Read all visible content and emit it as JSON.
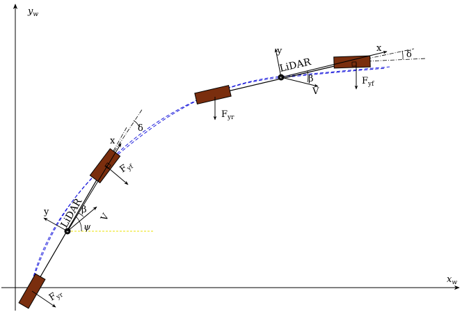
{
  "axes": {
    "x_label": "x",
    "x_sub": "w",
    "y_label": "y",
    "y_sub": "w"
  },
  "vehicle_left": {
    "lidar": "LiDAR",
    "x": "x",
    "y": "y",
    "V": "V",
    "beta": "β",
    "psi": "ψ",
    "delta": "δ",
    "Fyf": "F",
    "Fyf_sub": "yf",
    "Fyr": "F",
    "Fyr_sub": "yr"
  },
  "vehicle_right": {
    "lidar": "LiDAR",
    "x": "x",
    "y": "y",
    "V": "V",
    "beta": "β",
    "delta": "δ",
    "Fyf": "F",
    "Fyf_sub": "yf",
    "Fyr": "F",
    "Fyr_sub": "yr"
  },
  "colors": {
    "tire": "#7a2e0e",
    "trajectory": "#1a1adc",
    "heading_ref": "#e8e000"
  }
}
